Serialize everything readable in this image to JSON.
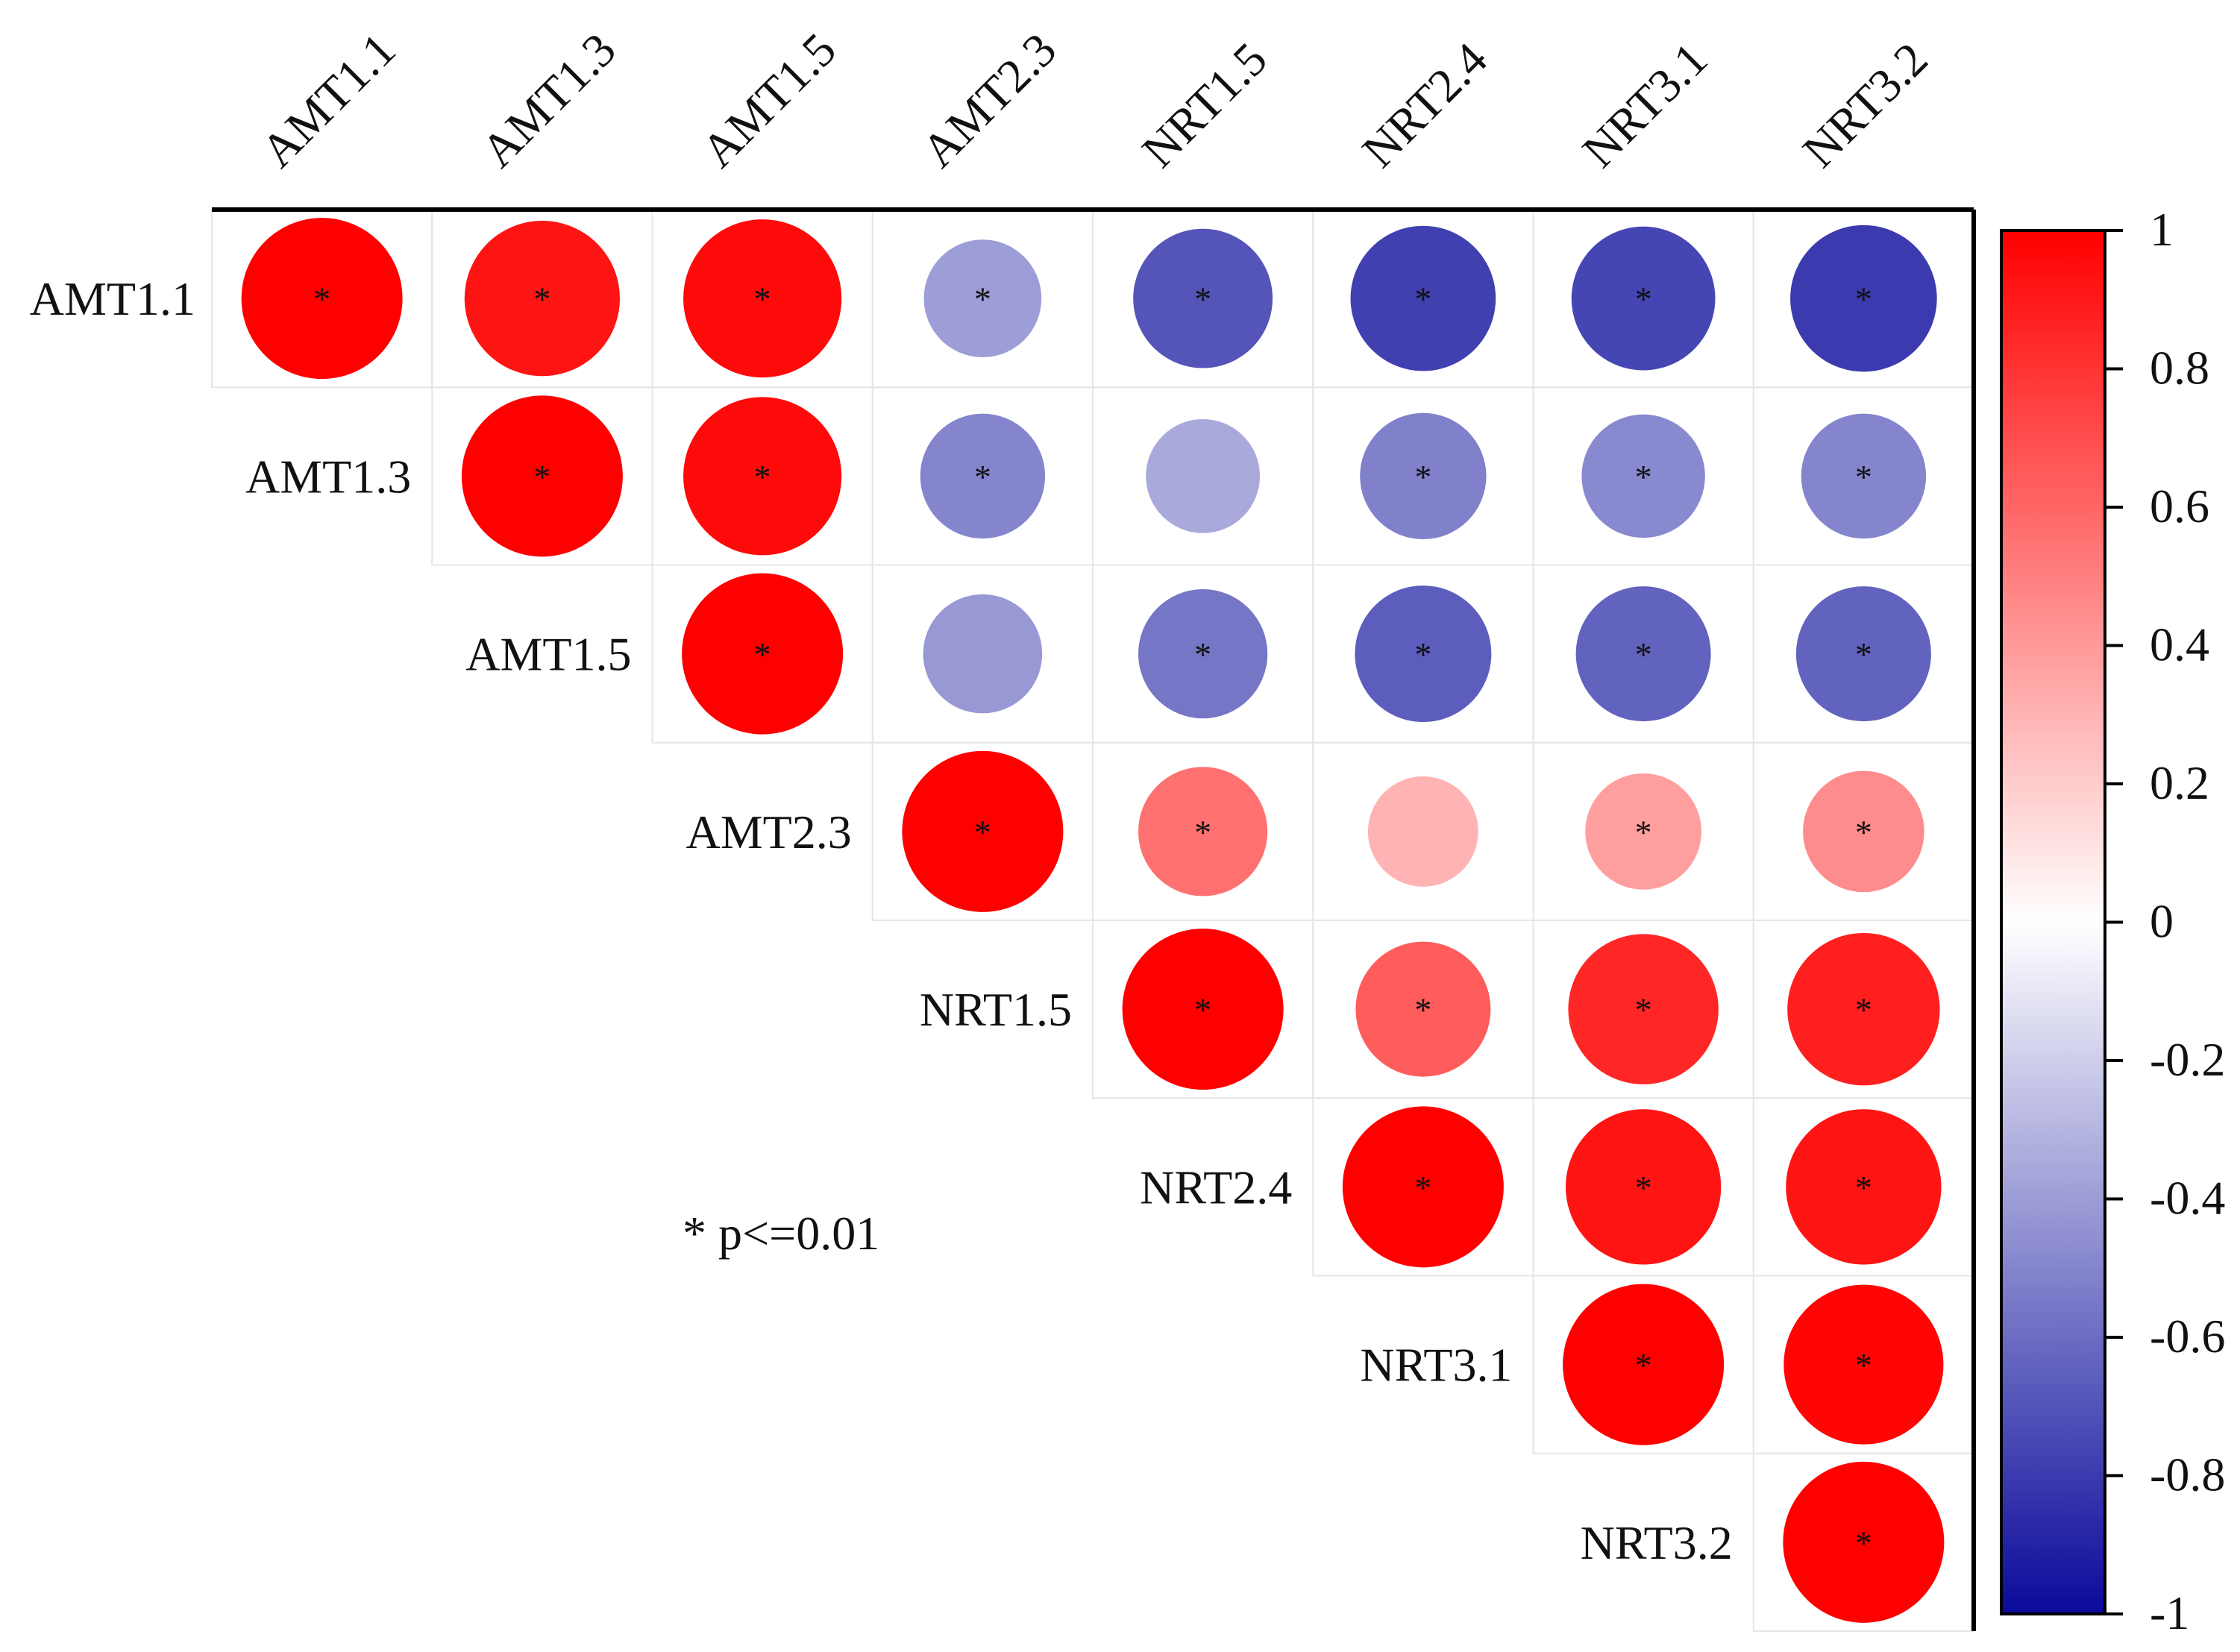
{
  "chart_data": {
    "type": "heatmap",
    "subtype": "correlation-upper-triangle-circles",
    "variables": [
      "AMT1.1",
      "AMT1.3",
      "AMT1.5",
      "AMT2.3",
      "NRT1.5",
      "NRT2.4",
      "NRT3.1",
      "NRT3.2"
    ],
    "matrix": [
      [
        1.0,
        0.92,
        0.96,
        -0.4,
        -0.7,
        -0.78,
        -0.76,
        -0.8
      ],
      [
        0.92,
        1.0,
        0.96,
        -0.5,
        -0.35,
        -0.52,
        -0.48,
        -0.5
      ],
      [
        0.96,
        0.96,
        1.0,
        -0.42,
        -0.56,
        -0.66,
        -0.64,
        -0.64
      ],
      [
        -0.4,
        -0.5,
        -0.42,
        1.0,
        0.56,
        0.3,
        0.38,
        0.45
      ],
      [
        -0.7,
        -0.35,
        -0.56,
        0.56,
        1.0,
        0.64,
        0.85,
        0.88
      ],
      [
        -0.78,
        -0.52,
        -0.66,
        0.3,
        0.64,
        1.0,
        0.92,
        0.92
      ],
      [
        -0.76,
        -0.48,
        -0.64,
        0.38,
        0.85,
        0.92,
        1.0,
        0.98
      ],
      [
        -0.8,
        -0.5,
        -0.64,
        0.45,
        0.88,
        0.92,
        0.98,
        1.0
      ]
    ],
    "significant": [
      [
        true,
        true,
        true,
        true,
        true,
        true,
        true,
        true
      ],
      [
        true,
        true,
        true,
        true,
        false,
        true,
        true,
        true
      ],
      [
        true,
        true,
        true,
        false,
        true,
        true,
        true,
        true
      ],
      [
        true,
        true,
        false,
        true,
        true,
        false,
        true,
        true
      ],
      [
        true,
        false,
        true,
        true,
        true,
        true,
        true,
        true
      ],
      [
        true,
        true,
        true,
        false,
        true,
        true,
        true,
        true
      ],
      [
        true,
        true,
        true,
        true,
        true,
        true,
        true,
        true
      ],
      [
        true,
        true,
        true,
        true,
        true,
        true,
        true,
        true
      ]
    ],
    "significance_marker": "*",
    "annotation": "* p<=0.01",
    "colorbar": {
      "range": [
        -1,
        1
      ],
      "ticks": [
        "1",
        "0.8",
        "0.6",
        "0.4",
        "0.2",
        "0",
        "-0.2",
        "-0.4",
        "-0.6",
        "-0.8",
        "-1"
      ],
      "colors": {
        "low": "#0a0a9b",
        "mid": "#ffffff",
        "high": "#ff0000"
      }
    }
  }
}
